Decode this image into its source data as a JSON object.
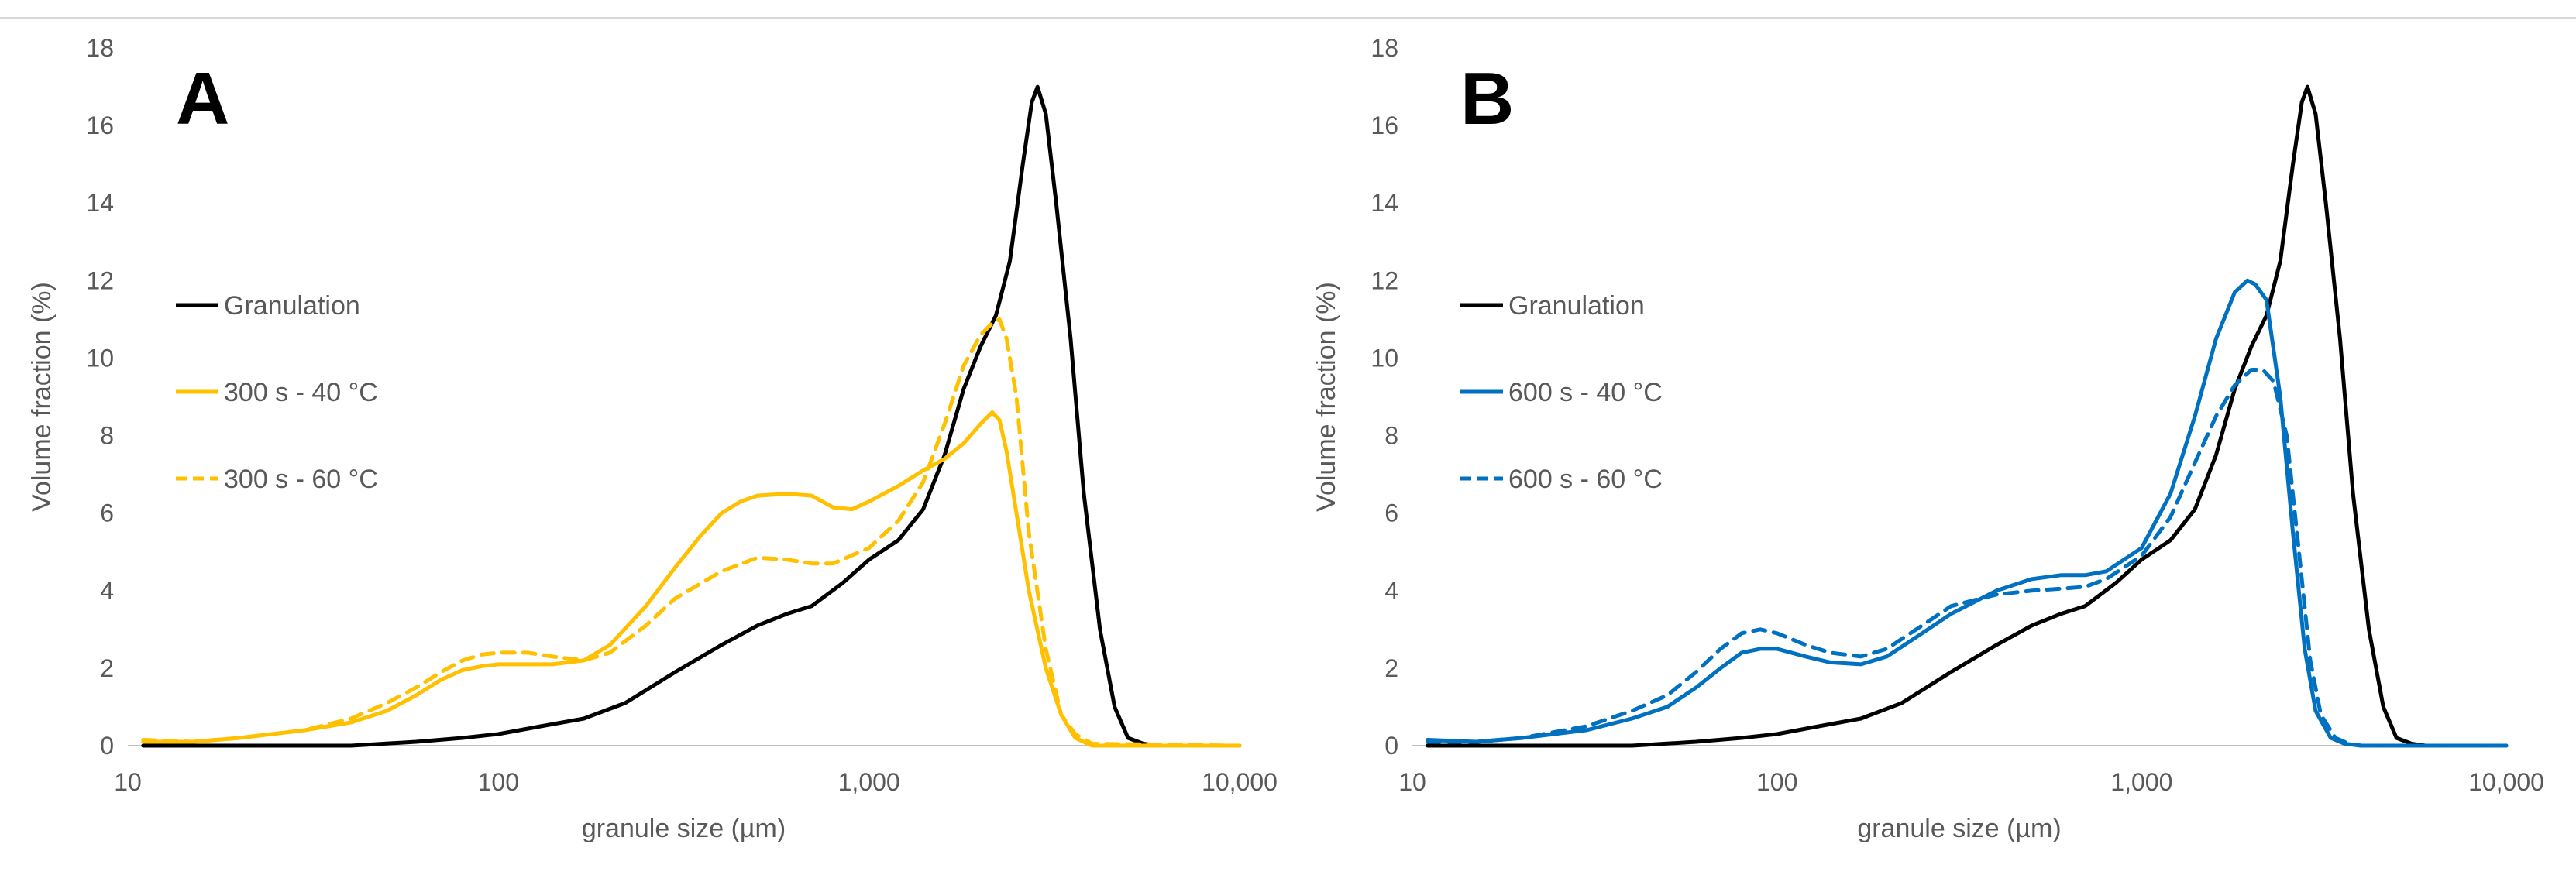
{
  "chart_data": [
    {
      "panel_label": "A",
      "type": "line",
      "x_scale": "log",
      "xlim": [
        10,
        10000
      ],
      "ylim": [
        0,
        18
      ],
      "x_ticks": [
        10,
        100,
        1000,
        10000
      ],
      "x_tick_labels": [
        "10",
        "100",
        "1,000",
        "10,000"
      ],
      "y_ticks": [
        0,
        2,
        4,
        6,
        8,
        10,
        12,
        14,
        16,
        18
      ],
      "y_tick_labels": [
        "0",
        "2",
        "4",
        "6",
        "8",
        "10",
        "12",
        "14",
        "16",
        "18"
      ],
      "xlabel": "granule size (µm)",
      "ylabel": "Volume fraction (%)",
      "grid": false,
      "legend_position": "middle-left",
      "series": [
        {
          "name": "Granulation",
          "color": "#000000",
          "dash": "solid",
          "x": [
            11,
            20,
            40,
            60,
            80,
            100,
            130,
            170,
            220,
            300,
            400,
            500,
            600,
            700,
            850,
            1000,
            1200,
            1400,
            1600,
            1800,
            2000,
            2200,
            2400,
            2600,
            2750,
            2850,
            3000,
            3200,
            3500,
            3800,
            4200,
            4600,
            5000,
            5500,
            6000,
            10000
          ],
          "y": [
            0,
            0,
            0,
            0.1,
            0.2,
            0.3,
            0.5,
            0.7,
            1.1,
            1.9,
            2.6,
            3.1,
            3.4,
            3.6,
            4.2,
            4.8,
            5.3,
            6.1,
            7.5,
            9.2,
            10.3,
            11.1,
            12.5,
            15.0,
            16.6,
            17.0,
            16.3,
            14.0,
            10.5,
            6.5,
            3.0,
            1.0,
            0.2,
            0.05,
            0,
            0
          ]
        },
        {
          "name": "300 s - 40 °C",
          "color": "#FFC000",
          "dash": "solid",
          "x": [
            11,
            15,
            20,
            30,
            40,
            50,
            60,
            70,
            80,
            90,
            100,
            120,
            140,
            170,
            200,
            250,
            300,
            350,
            400,
            450,
            500,
            600,
            700,
            800,
            900,
            1000,
            1200,
            1400,
            1600,
            1800,
            2000,
            2150,
            2250,
            2350,
            2500,
            2700,
            3000,
            3300,
            3600,
            4000,
            4500,
            10000
          ],
          "y": [
            0.1,
            0.1,
            0.2,
            0.4,
            0.6,
            0.9,
            1.3,
            1.7,
            1.95,
            2.05,
            2.1,
            2.1,
            2.1,
            2.2,
            2.6,
            3.6,
            4.6,
            5.4,
            6.0,
            6.3,
            6.45,
            6.5,
            6.45,
            6.15,
            6.1,
            6.3,
            6.7,
            7.1,
            7.4,
            7.8,
            8.3,
            8.6,
            8.4,
            7.6,
            6.0,
            4.0,
            2.0,
            0.8,
            0.2,
            0,
            0,
            0
          ]
        },
        {
          "name": "300 s - 60 °C",
          "color": "#FFC000",
          "dash": "dashed",
          "x": [
            11,
            15,
            20,
            30,
            40,
            50,
            60,
            70,
            80,
            90,
            100,
            120,
            140,
            170,
            200,
            250,
            300,
            400,
            500,
            600,
            700,
            800,
            1000,
            1200,
            1400,
            1600,
            1800,
            2000,
            2150,
            2250,
            2350,
            2500,
            2700,
            3000,
            3300,
            3600,
            4000,
            10000
          ],
          "y": [
            0.15,
            0.1,
            0.2,
            0.4,
            0.7,
            1.1,
            1.5,
            1.9,
            2.2,
            2.35,
            2.4,
            2.4,
            2.3,
            2.2,
            2.4,
            3.1,
            3.8,
            4.5,
            4.85,
            4.8,
            4.7,
            4.7,
            5.1,
            5.8,
            6.8,
            8.3,
            9.8,
            10.6,
            10.9,
            11.0,
            10.5,
            9.0,
            5.5,
            2.5,
            0.8,
            0.3,
            0.05,
            0
          ]
        }
      ]
    },
    {
      "panel_label": "B",
      "type": "line",
      "x_scale": "log",
      "xlim": [
        10,
        10000
      ],
      "ylim": [
        0,
        18
      ],
      "x_ticks": [
        10,
        100,
        1000,
        10000
      ],
      "x_tick_labels": [
        "10",
        "100",
        "1,000",
        "10,000"
      ],
      "y_ticks": [
        0,
        2,
        4,
        6,
        8,
        10,
        12,
        14,
        16,
        18
      ],
      "y_tick_labels": [
        "0",
        "2",
        "4",
        "6",
        "8",
        "10",
        "12",
        "14",
        "16",
        "18"
      ],
      "xlabel": "granule size (µm)",
      "ylabel": "Volume fraction (%)",
      "grid": false,
      "legend_position": "middle-left",
      "series": [
        {
          "name": "Granulation",
          "color": "#000000",
          "dash": "solid",
          "x": [
            11,
            20,
            40,
            60,
            80,
            100,
            130,
            170,
            220,
            300,
            400,
            500,
            600,
            700,
            850,
            1000,
            1200,
            1400,
            1600,
            1800,
            2000,
            2200,
            2400,
            2600,
            2750,
            2850,
            3000,
            3200,
            3500,
            3800,
            4200,
            4600,
            5000,
            5500,
            6000,
            10000
          ],
          "y": [
            0,
            0,
            0,
            0.1,
            0.2,
            0.3,
            0.5,
            0.7,
            1.1,
            1.9,
            2.6,
            3.1,
            3.4,
            3.6,
            4.2,
            4.8,
            5.3,
            6.1,
            7.5,
            9.2,
            10.3,
            11.1,
            12.5,
            15.0,
            16.6,
            17.0,
            16.3,
            14.0,
            10.5,
            6.5,
            3.0,
            1.0,
            0.2,
            0.05,
            0,
            0
          ]
        },
        {
          "name": "600 s - 40 °C",
          "color": "#0070C0",
          "dash": "solid",
          "x": [
            11,
            15,
            20,
            30,
            40,
            50,
            60,
            70,
            80,
            90,
            100,
            120,
            140,
            170,
            200,
            250,
            300,
            400,
            500,
            600,
            700,
            800,
            1000,
            1200,
            1400,
            1600,
            1800,
            1950,
            2050,
            2200,
            2400,
            2600,
            2800,
            3000,
            3300,
            3600,
            4000,
            10000
          ],
          "y": [
            0.15,
            0.1,
            0.2,
            0.4,
            0.7,
            1.0,
            1.5,
            2.0,
            2.4,
            2.5,
            2.5,
            2.3,
            2.15,
            2.1,
            2.3,
            2.9,
            3.4,
            4.0,
            4.3,
            4.4,
            4.4,
            4.5,
            5.1,
            6.5,
            8.5,
            10.5,
            11.7,
            12.0,
            11.9,
            11.5,
            9.0,
            5.5,
            2.5,
            0.9,
            0.2,
            0.05,
            0,
            0
          ]
        },
        {
          "name": "600 s - 60 °C",
          "color": "#0070C0",
          "dash": "dashed",
          "x": [
            11,
            15,
            20,
            30,
            40,
            50,
            60,
            70,
            80,
            90,
            100,
            120,
            140,
            170,
            200,
            250,
            300,
            400,
            500,
            600,
            700,
            800,
            1000,
            1200,
            1400,
            1600,
            1800,
            2000,
            2150,
            2300,
            2500,
            2700,
            2900,
            3100,
            3400,
            3700,
            4000,
            10000
          ],
          "y": [
            0.1,
            0.1,
            0.2,
            0.5,
            0.9,
            1.3,
            1.9,
            2.5,
            2.9,
            3.0,
            2.9,
            2.6,
            2.4,
            2.3,
            2.5,
            3.1,
            3.6,
            3.9,
            4.0,
            4.05,
            4.1,
            4.3,
            4.9,
            5.9,
            7.3,
            8.5,
            9.3,
            9.7,
            9.7,
            9.4,
            8.0,
            5.0,
            2.2,
            0.8,
            0.2,
            0.05,
            0,
            0
          ]
        }
      ]
    }
  ]
}
